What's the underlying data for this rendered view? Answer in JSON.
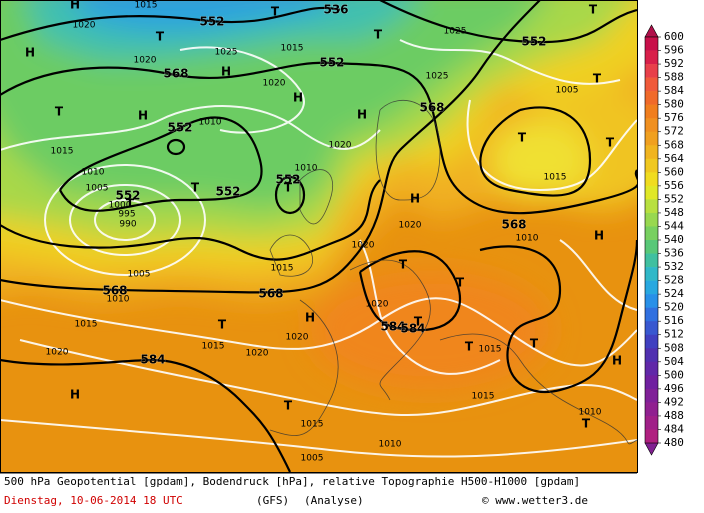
{
  "colorbar": {
    "ticks": [
      600,
      596,
      592,
      588,
      584,
      580,
      576,
      572,
      568,
      564,
      560,
      556,
      552,
      548,
      544,
      540,
      536,
      532,
      528,
      524,
      520,
      516,
      512,
      508,
      504,
      500,
      496,
      492,
      488,
      484,
      480
    ],
    "colors": [
      "#c8104a",
      "#d8204a",
      "#e8404a",
      "#f05a3a",
      "#f06a2a",
      "#f07e1e",
      "#f09020",
      "#f0a020",
      "#f0b420",
      "#f0c820",
      "#f0dc20",
      "#e0e828",
      "#b8e040",
      "#98d850",
      "#78d060",
      "#58c878",
      "#40c0a0",
      "#30b8c8",
      "#28a8e0",
      "#2890e8",
      "#3070e0",
      "#3858d0",
      "#4040c0",
      "#5030b0",
      "#6028a8",
      "#7020a0",
      "#802098",
      "#902090",
      "#a02088",
      "#b02080"
    ],
    "top_color": "#b0104a",
    "bottom_color": "#802090"
  },
  "geopotential_labels": [
    "552",
    "536",
    "552",
    "552",
    "568",
    "552",
    "552",
    "552",
    "552",
    "568",
    "568",
    "568",
    "568",
    "584",
    "584",
    "584"
  ],
  "pressure_systems": [
    "H",
    "H",
    "T",
    "T",
    "T",
    "H",
    "H",
    "H",
    "H",
    "T",
    "T",
    "T",
    "T",
    "T",
    "T",
    "T",
    "T",
    "H",
    "T",
    "T",
    "H",
    "T",
    "T",
    "T",
    "T",
    "H",
    "H",
    "H",
    "T",
    "T"
  ],
  "isobar_labels": [
    "1020",
    "1015",
    "1020",
    "1025",
    "1020",
    "1015",
    "1025",
    "1025",
    "1005",
    "1015",
    "1010",
    "1005",
    "1000",
    "995",
    "990",
    "1010",
    "1020",
    "1010",
    "1015",
    "1010",
    "1020",
    "1020",
    "1005",
    "1010",
    "1015",
    "1015",
    "1020",
    "1020",
    "1015",
    "1020",
    "1020",
    "1015",
    "1015",
    "1010",
    "1015",
    "1010",
    "1005"
  ],
  "footer": {
    "line1": "500 hPa Geopotential [gpdam], Bodendruck [hPa], relative Topographie H500-H1000 [gpdam]",
    "date": "Dienstag, 10-06-2014  18 UTC",
    "model": "(GFS)",
    "run": "(Analyse)",
    "credit": "© www.wetter3.de"
  }
}
